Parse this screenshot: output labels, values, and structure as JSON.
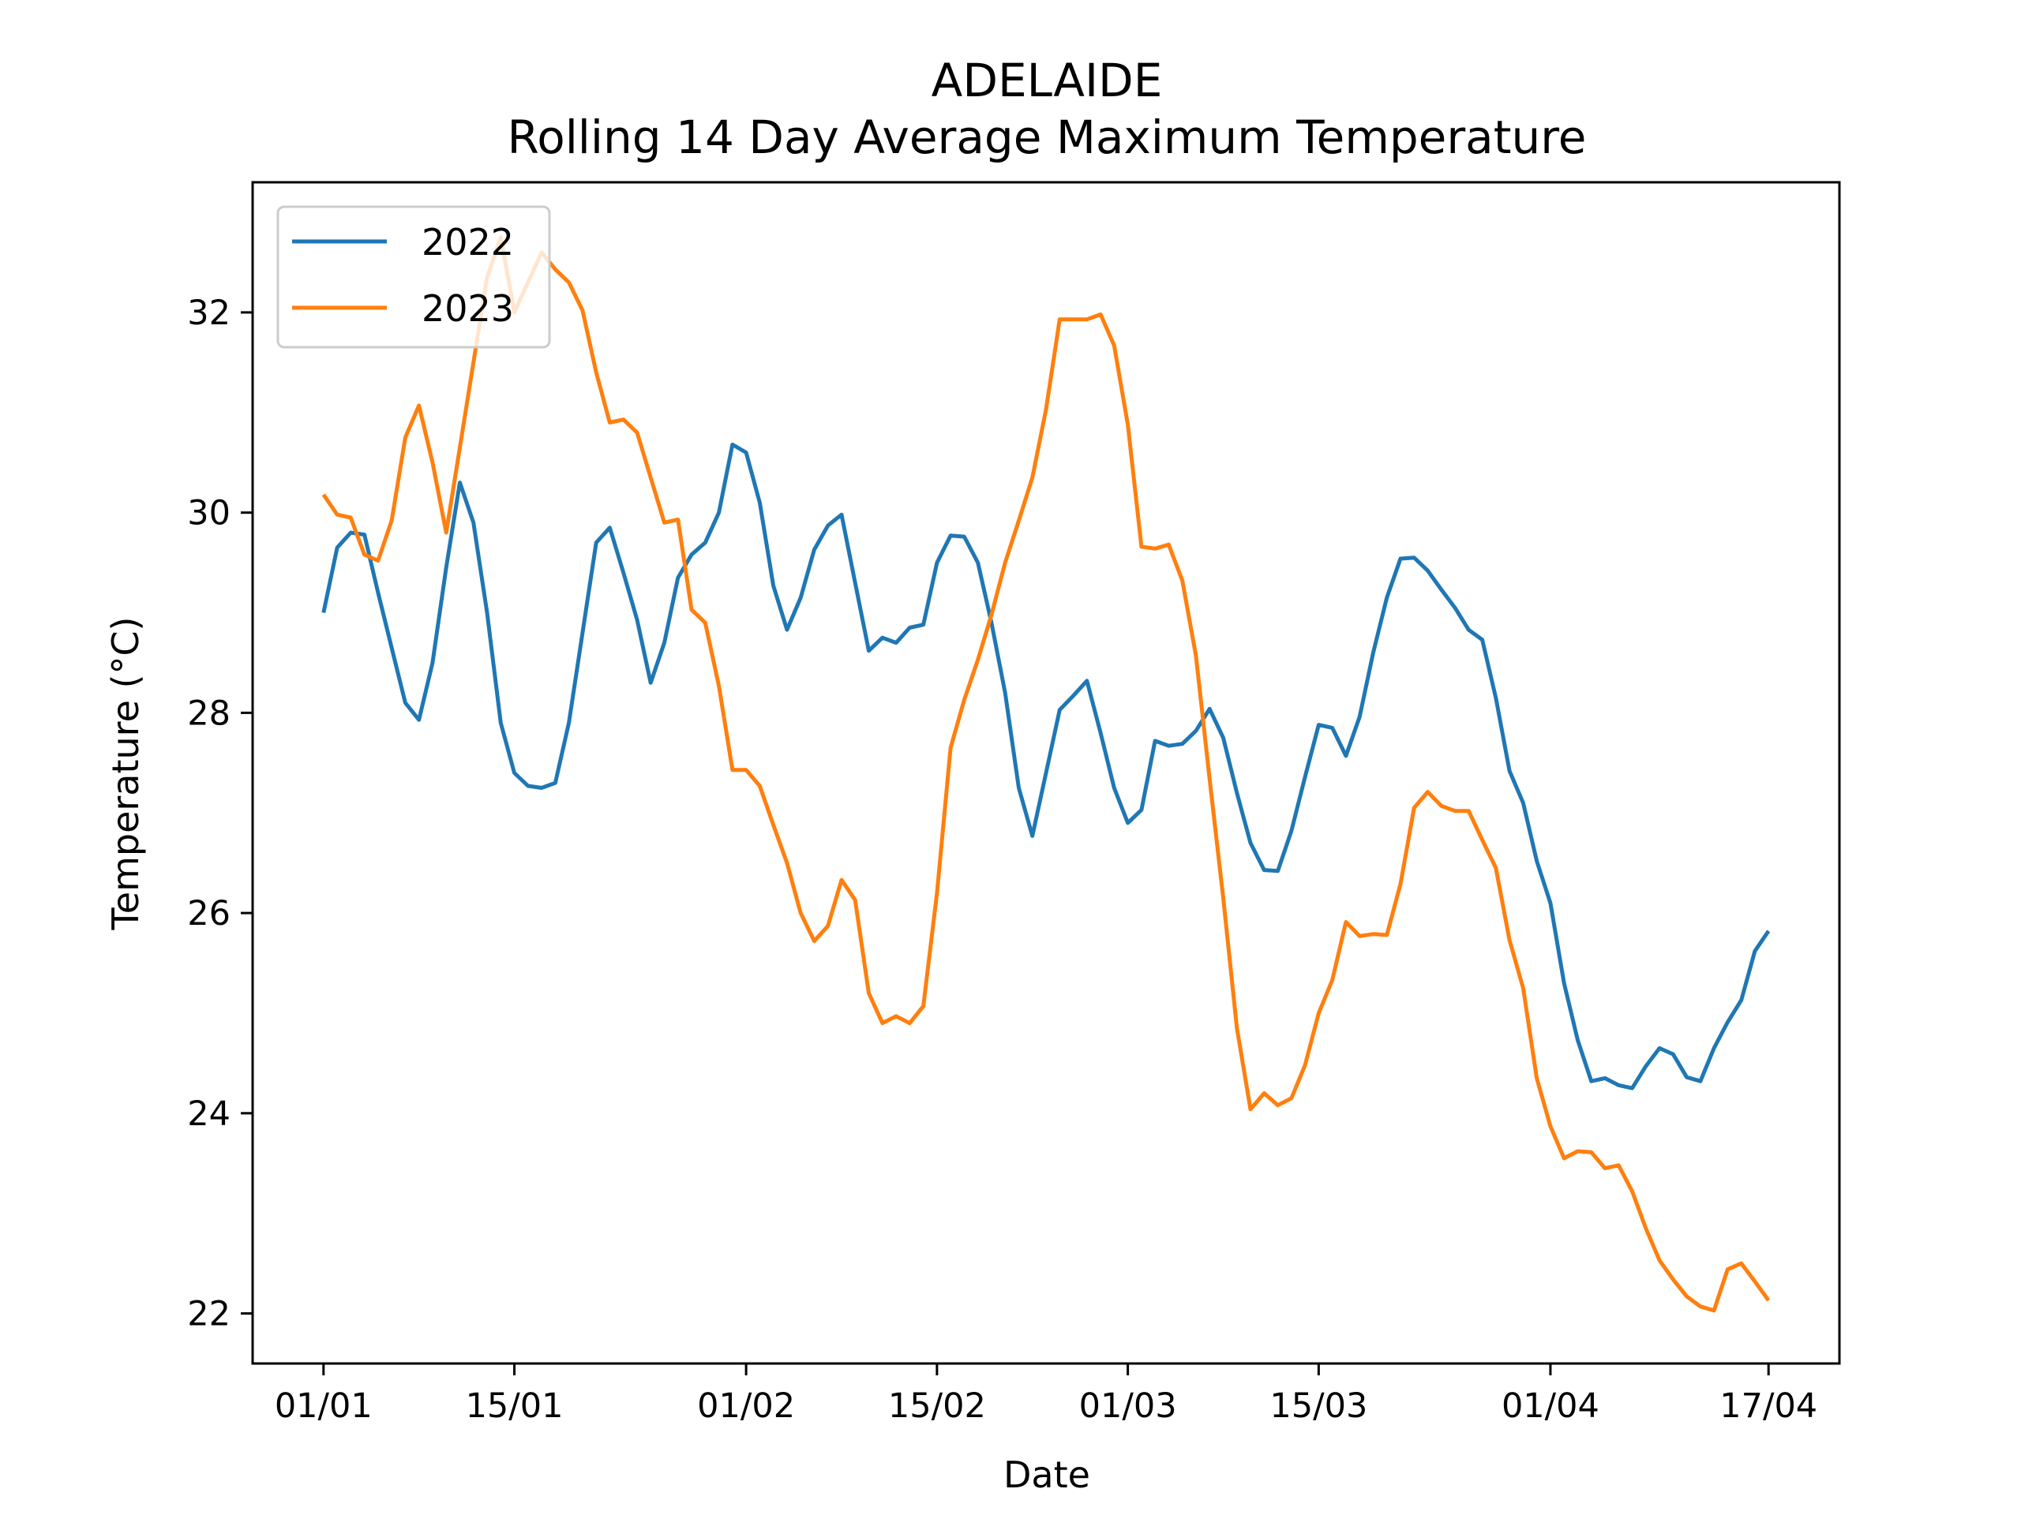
{
  "chart_data": {
    "type": "line",
    "title": "ADELAIDE",
    "subtitle": "Rolling 14 Day Average Maximum Temperature",
    "xlabel": "Date",
    "ylabel": "Temperature (°C)",
    "x_ticks": [
      "01/01",
      "15/01",
      "01/02",
      "15/02",
      "01/03",
      "15/03",
      "01/04",
      "17/04"
    ],
    "x_tick_day_index": [
      0,
      14,
      31,
      45,
      59,
      73,
      90,
      106
    ],
    "y_ticks": [
      "22",
      "24",
      "26",
      "28",
      "30",
      "32"
    ],
    "ylim": [
      21.5,
      33.3
    ],
    "x_range_day_index": [
      -5.2,
      111.2
    ],
    "grid": false,
    "legend": "upper-left",
    "series": [
      {
        "name": "2022",
        "color": "#1f77b4",
        "values": [
          29.0,
          29.65,
          29.8,
          29.78,
          29.2,
          28.65,
          28.1,
          27.93,
          28.5,
          29.45,
          30.3,
          29.9,
          29.0,
          27.9,
          27.4,
          27.27,
          27.25,
          27.3,
          27.9,
          28.8,
          29.7,
          29.85,
          29.4,
          28.93,
          28.3,
          28.7,
          29.35,
          29.58,
          29.7,
          30.0,
          30.68,
          30.6,
          30.1,
          29.27,
          28.83,
          29.15,
          29.63,
          29.87,
          29.98,
          29.3,
          28.62,
          28.75,
          28.7,
          28.85,
          28.88,
          29.5,
          29.77,
          29.76,
          29.5,
          28.9,
          28.2,
          27.25,
          26.77,
          27.4,
          28.03,
          28.17,
          28.32,
          27.8,
          27.25,
          26.9,
          27.03,
          27.72,
          27.67,
          27.69,
          27.82,
          28.04,
          27.75,
          27.2,
          26.7,
          26.43,
          26.42,
          26.82,
          27.36,
          27.88,
          27.85,
          27.57,
          27.96,
          28.6,
          29.15,
          29.54,
          29.55,
          29.42,
          29.23,
          29.05,
          28.83,
          28.73,
          28.15,
          27.42,
          27.1,
          26.52,
          26.1,
          25.3,
          24.73,
          24.32,
          24.35,
          24.28,
          24.25,
          24.47,
          24.65,
          24.59,
          24.36,
          24.32,
          24.65,
          24.91,
          25.13,
          25.62,
          25.82
        ]
      },
      {
        "name": "2023",
        "color": "#ff7f0e",
        "values": [
          30.18,
          29.98,
          29.95,
          29.58,
          29.52,
          29.92,
          30.75,
          31.07,
          30.5,
          29.8,
          30.65,
          31.5,
          32.35,
          32.75,
          32.0,
          32.3,
          32.6,
          32.43,
          32.3,
          32.02,
          31.4,
          30.9,
          30.93,
          30.8,
          30.35,
          29.9,
          29.93,
          29.03,
          28.9,
          28.27,
          27.43,
          27.43,
          27.27,
          26.88,
          26.5,
          26.0,
          25.72,
          25.87,
          26.33,
          26.13,
          25.2,
          24.9,
          24.97,
          24.9,
          25.07,
          26.2,
          27.65,
          28.13,
          28.53,
          28.98,
          29.5,
          29.92,
          30.35,
          31.03,
          31.93,
          31.93,
          31.93,
          31.98,
          31.67,
          30.88,
          29.66,
          29.64,
          29.68,
          29.32,
          28.57,
          27.34,
          26.15,
          24.85,
          24.04,
          24.2,
          24.08,
          24.15,
          24.48,
          25.0,
          25.33,
          25.91,
          25.77,
          25.79,
          25.78,
          26.29,
          27.05,
          27.21,
          27.07,
          27.02,
          27.02,
          26.73,
          26.45,
          25.73,
          25.25,
          24.35,
          23.87,
          23.55,
          23.62,
          23.61,
          23.45,
          23.48,
          23.22,
          22.85,
          22.53,
          22.34,
          22.17,
          22.07,
          22.03,
          22.44,
          22.5,
          22.32,
          22.13
        ]
      }
    ]
  }
}
